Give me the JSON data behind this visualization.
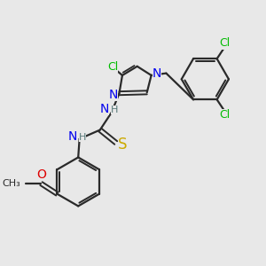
{
  "background_color": "#e8e8e8",
  "bond_color": "#2a2a2a",
  "colors": {
    "N": "#0000ee",
    "O": "#dd0000",
    "S": "#ccaa00",
    "Cl": "#00bb00",
    "C": "#2a2a2a",
    "H": "#557777"
  }
}
